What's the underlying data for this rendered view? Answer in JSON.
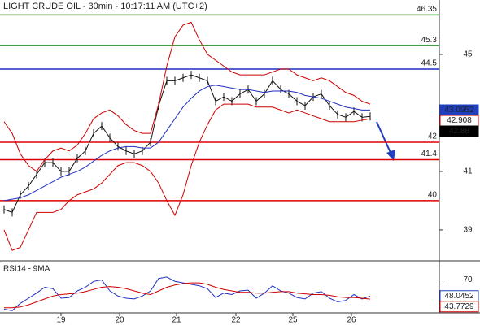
{
  "chart_data": {
    "type": "ohlc-line",
    "title": "LIGHT CRUDE OIL - 30min - 10:17:11 AM (UTC+2)",
    "xlim": [
      -0.5,
      53.5
    ],
    "xticks": [
      {
        "value": 7,
        "label": "19"
      },
      {
        "value": 14.2,
        "label": "20"
      },
      {
        "value": 21.2,
        "label": "21"
      },
      {
        "value": 28.5,
        "label": "22"
      },
      {
        "value": 35.5,
        "label": "25"
      },
      {
        "value": 42.7,
        "label": "26"
      }
    ],
    "ylim": [
      37.97,
      46.86
    ],
    "yticks": [
      39,
      41,
      45
    ],
    "levels": [
      {
        "value": 46.35,
        "color": "#2e8b2e"
      },
      {
        "value": 45.3,
        "color": "#2e8b2e"
      },
      {
        "value": 44.5,
        "color": "#1f2fbf"
      },
      {
        "value": 42,
        "color": "#dd0000"
      },
      {
        "value": 41.4,
        "color": "#dd0000"
      },
      {
        "value": 40,
        "color": "#dd0000"
      }
    ],
    "series": [
      {
        "name": "Price",
        "color": "#111111",
        "values": [
          39.7,
          39.6,
          40.2,
          40.5,
          40.9,
          41.3,
          41.3,
          41.0,
          41.0,
          41.45,
          41.7,
          42.3,
          42.55,
          42.15,
          41.85,
          41.7,
          41.6,
          41.7,
          42.0,
          43.25,
          44.1,
          44.1,
          44.2,
          44.3,
          44.2,
          44.1,
          43.4,
          43.55,
          43.4,
          43.65,
          43.8,
          43.4,
          43.65,
          44.1,
          43.8,
          43.65,
          43.4,
          43.25,
          43.55,
          43.65,
          43.25,
          42.95,
          42.85,
          43.05,
          42.85,
          42.88
        ]
      },
      {
        "name": "MA",
        "color": "#1f2fbf",
        "values": [
          40.0,
          40.05,
          40.1,
          40.2,
          40.35,
          40.5,
          40.65,
          40.8,
          40.9,
          41.0,
          41.15,
          41.35,
          41.55,
          41.7,
          41.8,
          41.85,
          41.85,
          41.8,
          41.8,
          42.0,
          42.4,
          42.8,
          43.2,
          43.5,
          43.75,
          43.9,
          43.95,
          43.9,
          43.85,
          43.8,
          43.8,
          43.75,
          43.7,
          43.75,
          43.75,
          43.75,
          43.7,
          43.6,
          43.55,
          43.5,
          43.4,
          43.3,
          43.2,
          43.15,
          43.1,
          43.1
        ]
      },
      {
        "name": "Upper band",
        "color": "#cc0000",
        "values": [
          42.7,
          42.3,
          41.6,
          41.2,
          41.0,
          41.4,
          41.7,
          41.8,
          41.7,
          41.9,
          42.3,
          42.8,
          43.0,
          43.1,
          42.9,
          42.6,
          42.4,
          42.3,
          42.3,
          43.3,
          44.6,
          45.6,
          46.0,
          46.1,
          45.5,
          45.0,
          44.8,
          44.6,
          44.4,
          44.3,
          44.3,
          44.3,
          44.3,
          44.4,
          44.5,
          44.5,
          44.3,
          44.2,
          44.1,
          44.2,
          44.1,
          43.9,
          43.7,
          43.6,
          43.4,
          43.3
        ]
      },
      {
        "name": "Lower band",
        "color": "#cc0000",
        "values": [
          39.0,
          38.3,
          38.4,
          39.0,
          39.6,
          39.6,
          39.6,
          39.7,
          40.0,
          40.2,
          40.3,
          40.4,
          40.6,
          40.9,
          41.2,
          41.3,
          41.3,
          41.2,
          41.0,
          40.6,
          40.0,
          39.5,
          40.2,
          41.2,
          42.0,
          42.6,
          43.1,
          43.3,
          43.3,
          43.3,
          43.3,
          43.2,
          43.2,
          43.2,
          43.1,
          43.0,
          43.1,
          43.0,
          42.9,
          42.8,
          42.7,
          42.7,
          42.7,
          42.7,
          42.75,
          42.8
        ]
      }
    ],
    "price_tags": [
      {
        "value": 43.0952,
        "color": "#1f3fbf",
        "filled": true
      },
      {
        "value": 42.908,
        "color": "#cc0000",
        "filled": false
      },
      {
        "value": 42.88,
        "color": "#000000",
        "filled": true
      }
    ],
    "rsi": {
      "title": "RSI14 - 9MA",
      "ylim": [
        25,
        95
      ],
      "yticks": [
        70
      ],
      "series": [
        {
          "name": "RSI14",
          "color": "#1f2fbf",
          "values": [
            30,
            28,
            38,
            45,
            52,
            60,
            58,
            45,
            46,
            55,
            60,
            68,
            70,
            55,
            48,
            45,
            44,
            48,
            55,
            72,
            74,
            68,
            66,
            64,
            62,
            58,
            46,
            52,
            50,
            55,
            56,
            45,
            52,
            62,
            55,
            52,
            46,
            44,
            52,
            54,
            45,
            40,
            42,
            50,
            44,
            48
          ]
        },
        {
          "name": "9MA",
          "color": "#cc0000",
          "values": [
            32,
            32,
            33,
            36,
            40,
            44,
            48,
            50,
            51,
            52,
            54,
            57,
            60,
            61,
            60,
            58,
            55,
            52,
            50,
            55,
            60,
            63,
            65,
            66,
            66,
            64,
            60,
            57,
            55,
            53,
            53,
            52,
            52,
            53,
            54,
            54,
            52,
            51,
            50,
            50,
            49,
            47,
            46,
            46,
            45,
            43.8
          ]
        }
      ],
      "tags": [
        {
          "value": 48.0452,
          "color": "#1f3fbf",
          "filled": false
        },
        {
          "value": 43.7729,
          "color": "#cc0000",
          "filled": false
        }
      ]
    }
  }
}
